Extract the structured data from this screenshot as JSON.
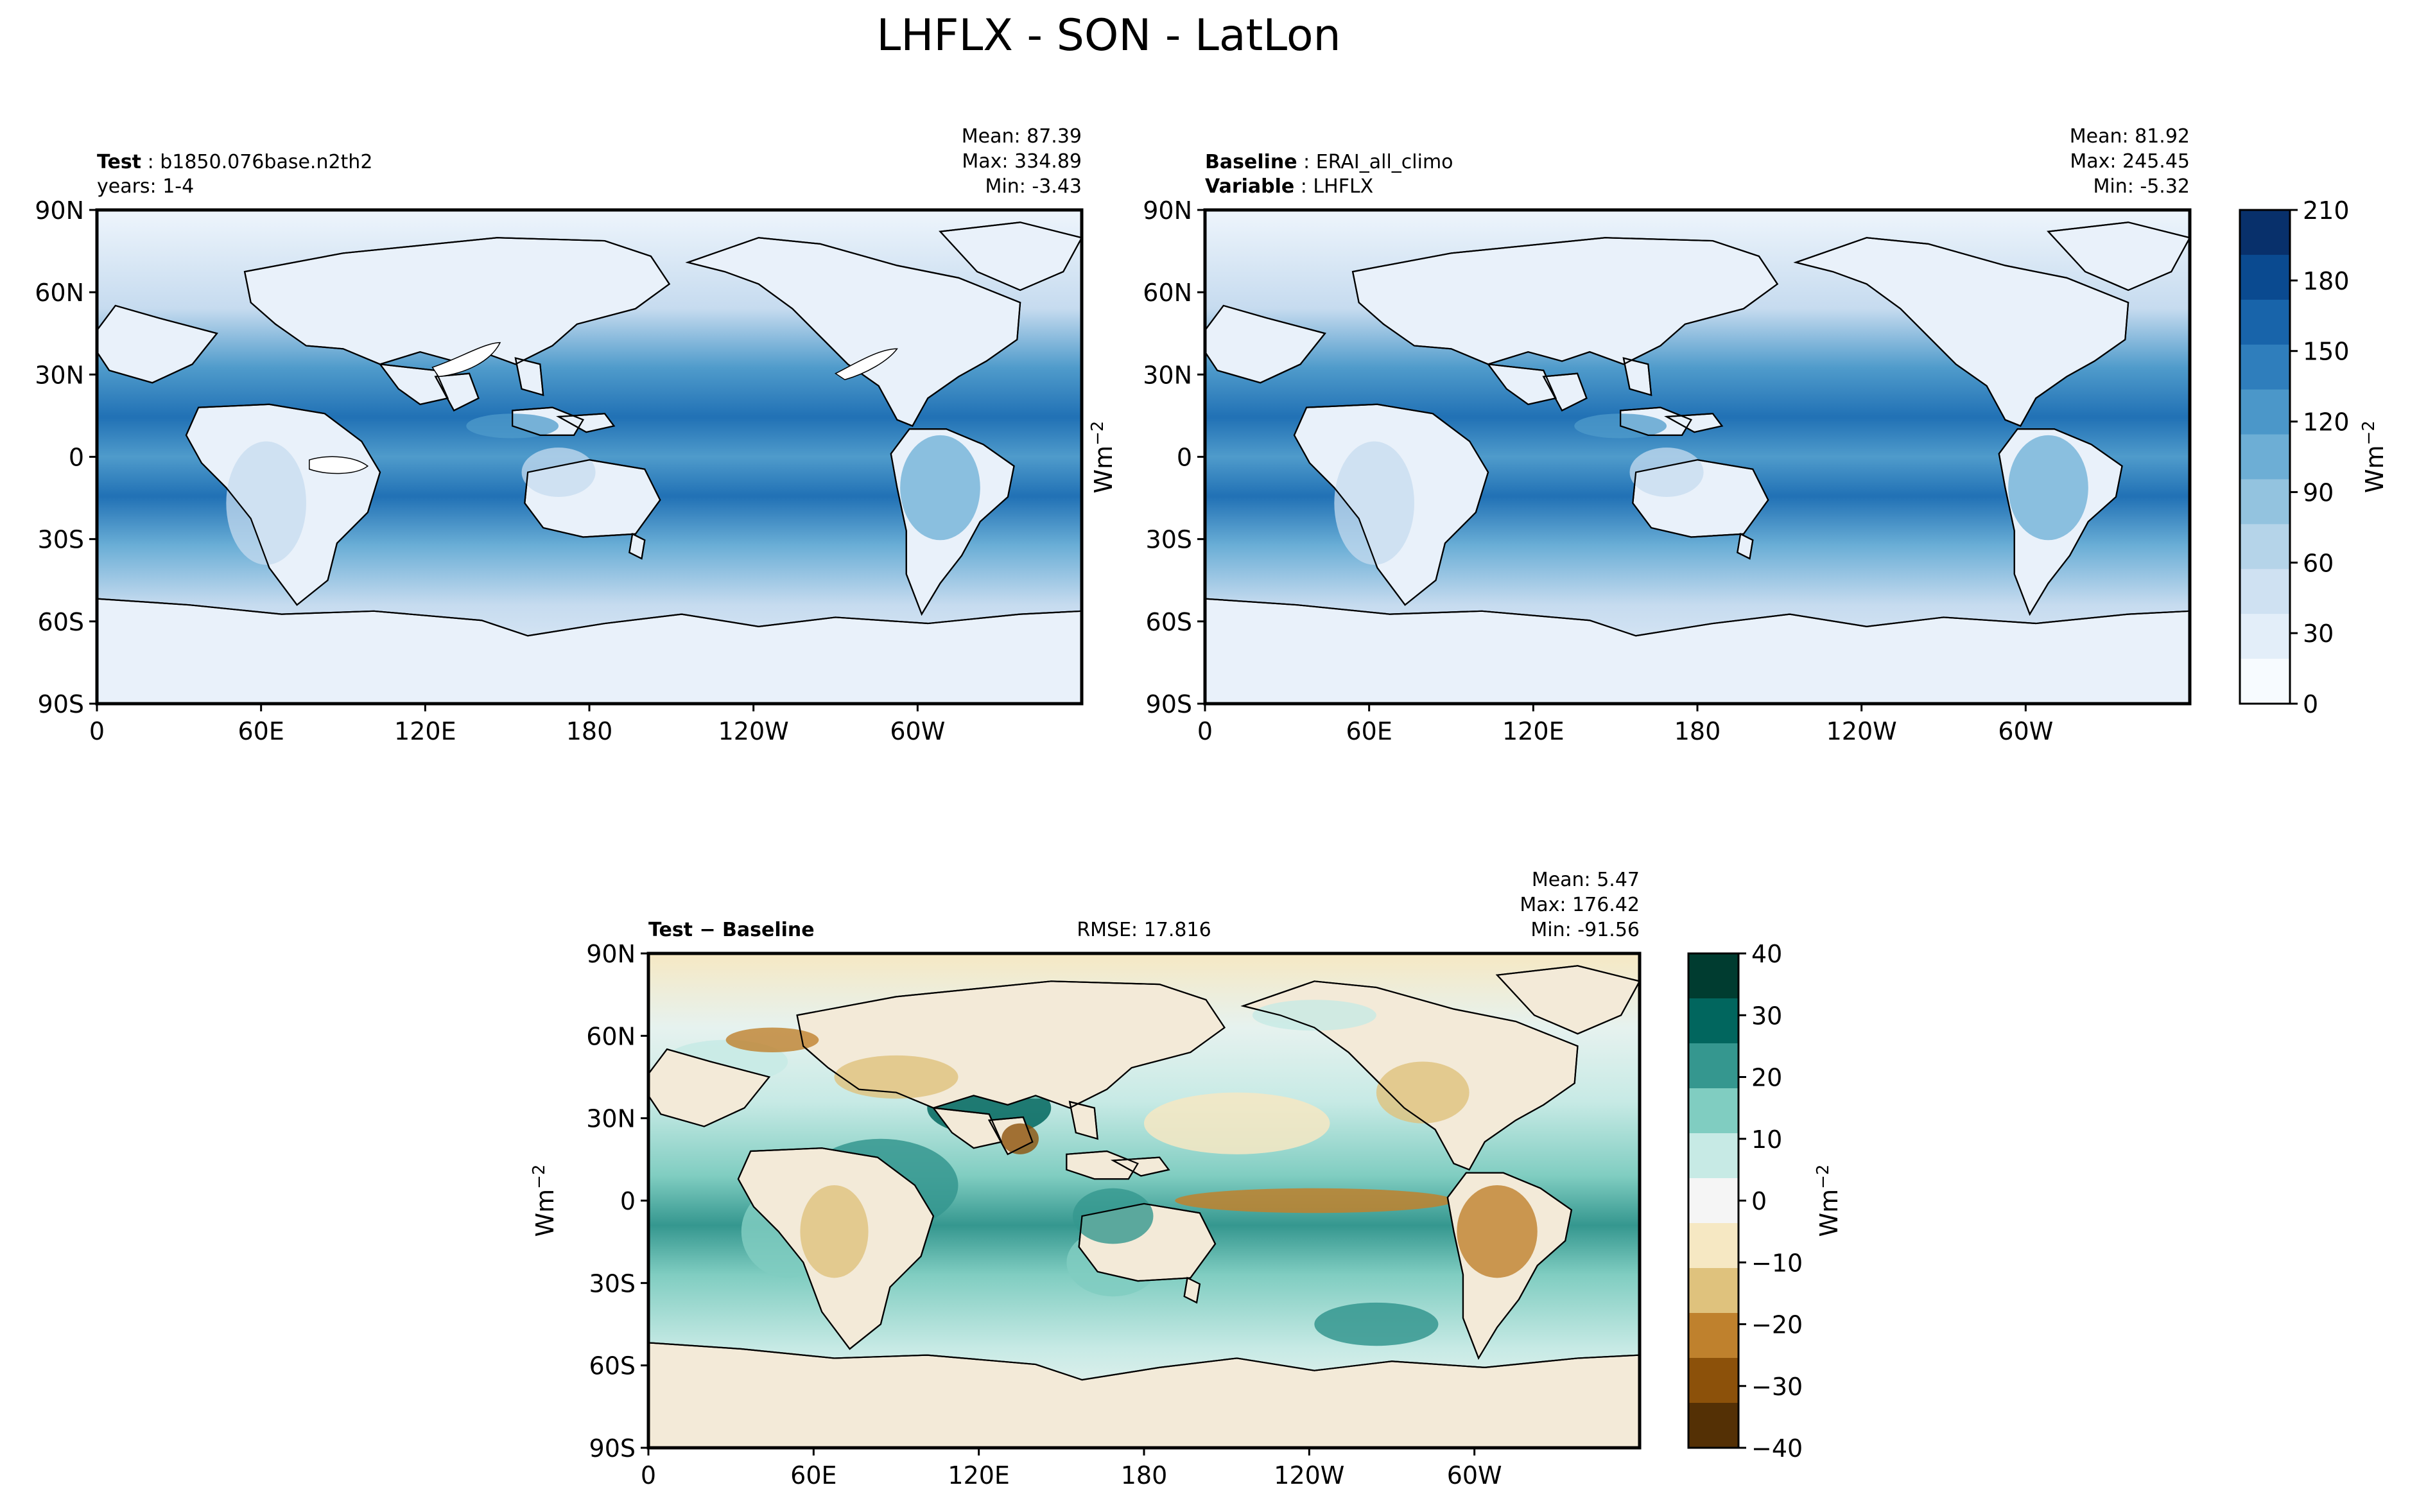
{
  "figure": {
    "title": "LHFLX - SON - LatLon"
  },
  "axes": {
    "lat_ticks": [
      "90N",
      "60N",
      "30N",
      "0",
      "30S",
      "60S",
      "90S"
    ],
    "lon_ticks": [
      "0",
      "60E",
      "120E",
      "180",
      "120W",
      "60W"
    ]
  },
  "panels": {
    "test": {
      "label_bold": "Test",
      "label": "b1850.076base.n2th2",
      "line2": "years: 1-4",
      "mean": "Mean: 87.39",
      "max": "Max: 334.89",
      "min": "Min: -3.43"
    },
    "baseline": {
      "label_bold": "Baseline",
      "label": "ERAI_all_climo",
      "var_bold": "Variable",
      "var": "LHFLX",
      "mean": "Mean: 81.92",
      "max": "Max: 245.45",
      "min": "Min: -5.32",
      "ylabel": "Wm"
    },
    "diff": {
      "label_bold": "Test − Baseline",
      "rmse": "RMSE: 17.816",
      "mean": "Mean:  5.47",
      "max": "Max: 176.42",
      "min": "Min: -91.56",
      "ylabel": "Wm"
    }
  },
  "colorbars": {
    "top": {
      "label": "Wm",
      "ticks": [
        "0",
        "30",
        "60",
        "90",
        "120",
        "150",
        "180",
        "210"
      ],
      "colors": [
        "#f7fbff",
        "#e3eef9",
        "#cfe1f2",
        "#b5d4e9",
        "#93c3df",
        "#6daed5",
        "#4b97c9",
        "#2f7ebc",
        "#1864aa",
        "#0a4a90",
        "#08306b"
      ]
    },
    "diff": {
      "label": "Wm",
      "ticks": [
        "40",
        "30",
        "20",
        "10",
        "0",
        "−10",
        "−20",
        "−30",
        "−40"
      ],
      "colors": [
        "#003c30",
        "#01665e",
        "#35978f",
        "#80cdc1",
        "#c7eae5",
        "#f5f5f5",
        "#f6e8c3",
        "#dfc27d",
        "#bf812d",
        "#8c510a",
        "#543005"
      ]
    }
  },
  "chart_data": [
    {
      "type": "heatmap",
      "title": "Test: b1850.076base.n2th2",
      "subtitle": "years: 1-4",
      "variable": "LHFLX",
      "units": "Wm-2",
      "xlabel": "",
      "ylabel": "",
      "xlim": [
        0,
        360
      ],
      "ylim": [
        -90,
        90
      ],
      "stats": {
        "mean": 87.39,
        "max": 334.89,
        "min": -3.43
      },
      "colorbar_range": [
        0,
        210
      ]
    },
    {
      "type": "heatmap",
      "title": "Baseline: ERAI_all_climo",
      "subtitle": "Variable: LHFLX",
      "variable": "LHFLX",
      "units": "Wm-2",
      "xlabel": "",
      "ylabel": "Wm-2",
      "xlim": [
        0,
        360
      ],
      "ylim": [
        -90,
        90
      ],
      "stats": {
        "mean": 81.92,
        "max": 245.45,
        "min": -5.32
      },
      "colorbar_range": [
        0,
        210
      ]
    },
    {
      "type": "heatmap",
      "title": "Test − Baseline",
      "variable": "LHFLX",
      "units": "Wm-2",
      "xlabel": "",
      "ylabel": "Wm-2",
      "xlim": [
        0,
        360
      ],
      "ylim": [
        -90,
        90
      ],
      "stats": {
        "mean": 5.47,
        "max": 176.42,
        "min": -91.56,
        "rmse": 17.816
      },
      "colorbar_range": [
        -40,
        40
      ]
    }
  ]
}
